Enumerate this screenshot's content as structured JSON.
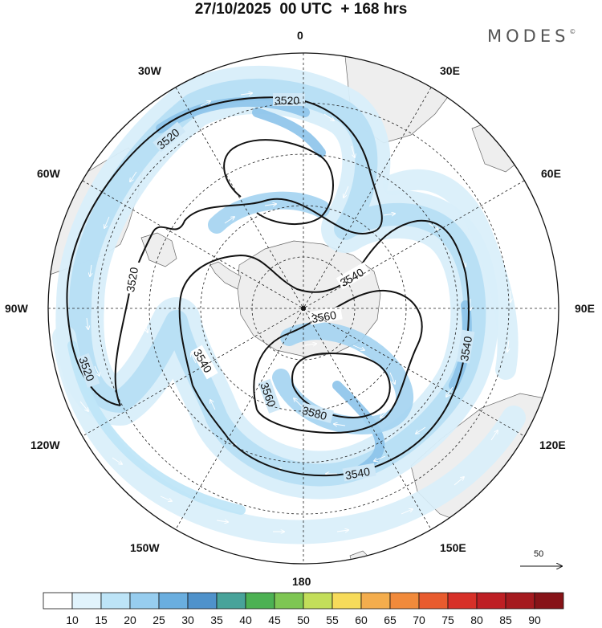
{
  "title": "27/10/2025  00 UTC  + 168 hrs",
  "brand": {
    "name": "MODES",
    "mark": "©"
  },
  "longitude_labels": {
    "deg0": "0",
    "e30": "30E",
    "e60": "60E",
    "e90": "90E",
    "e120": "120E",
    "e150": "150E",
    "deg180": "180",
    "w150": "150W",
    "w120": "120W",
    "w90": "90W",
    "w60": "60W",
    "w30": "30W"
  },
  "contour_labels": [
    "3520",
    "3520",
    "3520",
    "3520",
    "3540",
    "3540",
    "3540",
    "3540",
    "3560",
    "3560",
    "3580"
  ],
  "vector_reference": {
    "value": "50"
  },
  "colorbar": {
    "ticks": [
      "10",
      "15",
      "20",
      "25",
      "30",
      "35",
      "40",
      "45",
      "50",
      "55",
      "60",
      "65",
      "70",
      "75",
      "80",
      "85",
      "90"
    ],
    "colors": [
      "#ffffff",
      "#e1f3fc",
      "#bde4f7",
      "#97cdef",
      "#6aaedf",
      "#4f92cb",
      "#48a39a",
      "#4cb153",
      "#7ec653",
      "#c3de5a",
      "#f7db5a",
      "#f4ad4d",
      "#f18a3b",
      "#e85b2e",
      "#d73028",
      "#be1f24",
      "#a51a1f",
      "#871318"
    ]
  }
}
